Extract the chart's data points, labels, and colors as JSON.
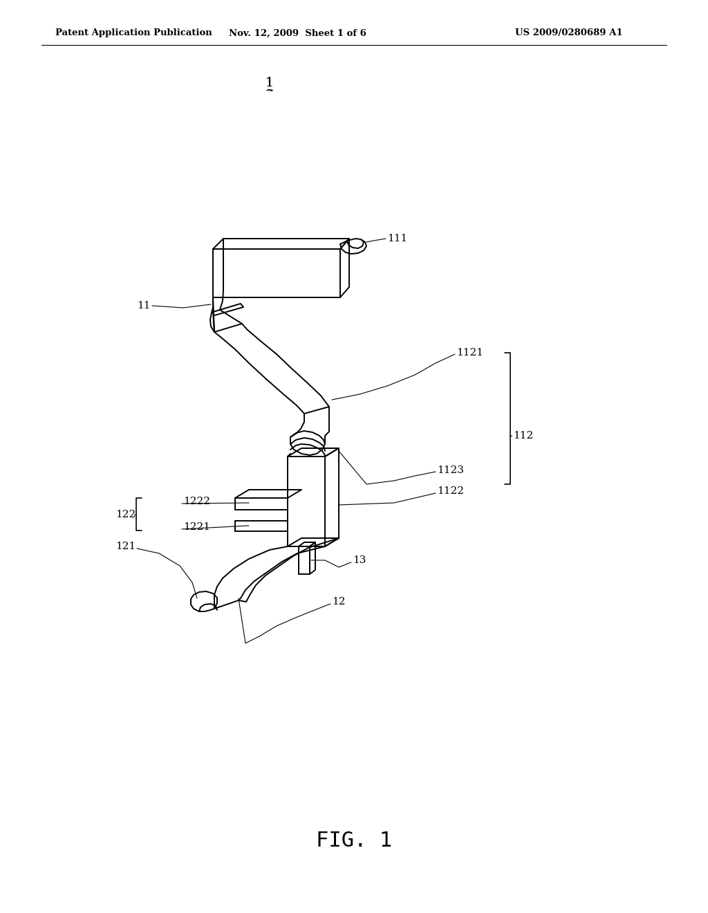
{
  "bg_color": "#ffffff",
  "line_color": "#000000",
  "lw": 1.4,
  "lw_thin": 0.8,
  "fig_width": 10.24,
  "fig_height": 13.2,
  "header_left": "Patent Application Publication",
  "header_center": "Nov. 12, 2009  Sheet 1 of 6",
  "header_right": "US 2009/0280689 A1",
  "figure_label": "FIG. 1"
}
